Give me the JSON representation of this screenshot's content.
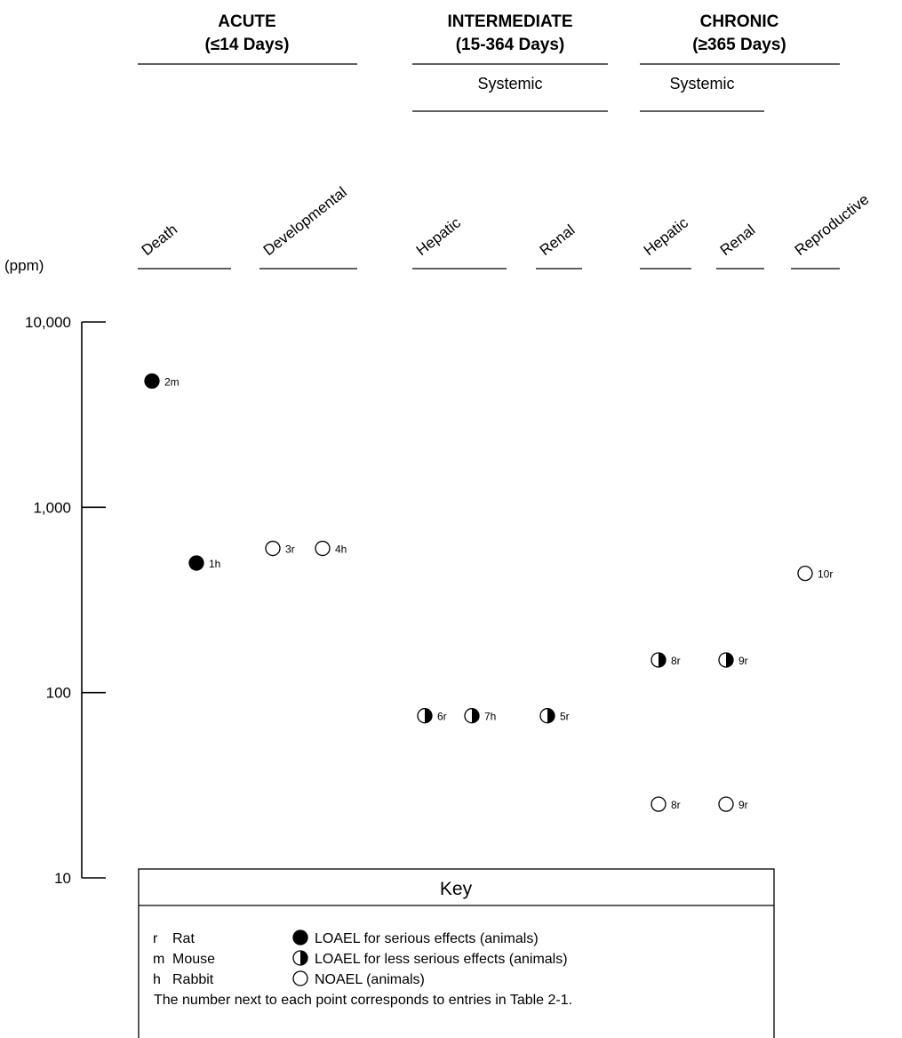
{
  "chart_data": {
    "type": "scatter",
    "y_unit": "(ppm)",
    "y_scale": "log",
    "ylim": [
      10,
      10000
    ],
    "y_ticks": [
      {
        "value": 10000,
        "label": "10,000"
      },
      {
        "value": 1000,
        "label": "1,000"
      },
      {
        "value": 100,
        "label": "100"
      },
      {
        "value": 10,
        "label": "10"
      }
    ],
    "durations": [
      {
        "id": "acute",
        "title": "ACUTE",
        "subtitle": "(≤14 Days)"
      },
      {
        "id": "intermediate",
        "title": "INTERMEDIATE",
        "subtitle": "(15-364 Days)",
        "group": "Systemic"
      },
      {
        "id": "chronic",
        "title": "CHRONIC",
        "subtitle": "(≥365 Days)",
        "group": "Systemic"
      }
    ],
    "columns": [
      {
        "id": "acute-death",
        "duration": "acute",
        "label": "Death"
      },
      {
        "id": "acute-developmental",
        "duration": "acute",
        "label": "Developmental"
      },
      {
        "id": "intermediate-hepatic",
        "duration": "intermediate",
        "label": "Hepatic"
      },
      {
        "id": "intermediate-renal",
        "duration": "intermediate",
        "label": "Renal"
      },
      {
        "id": "chronic-hepatic",
        "duration": "chronic",
        "label": "Hepatic"
      },
      {
        "id": "chronic-renal",
        "duration": "chronic",
        "label": "Renal"
      },
      {
        "id": "chronic-reproductive",
        "duration": "chronic",
        "label": "Reproductive"
      }
    ],
    "points": [
      {
        "column": "acute-death",
        "value": 4800,
        "label": "2m",
        "effect": "loael-serious"
      },
      {
        "column": "acute-death",
        "value": 500,
        "label": "1h",
        "effect": "loael-serious"
      },
      {
        "column": "acute-developmental",
        "value": 600,
        "label": "3r",
        "effect": "noael"
      },
      {
        "column": "acute-developmental",
        "value": 600,
        "label": "4h",
        "effect": "noael"
      },
      {
        "column": "intermediate-hepatic",
        "value": 75,
        "label": "6r",
        "effect": "loael-less-serious"
      },
      {
        "column": "intermediate-hepatic",
        "value": 75,
        "label": "7h",
        "effect": "loael-less-serious"
      },
      {
        "column": "intermediate-renal",
        "value": 75,
        "label": "5r",
        "effect": "loael-less-serious"
      },
      {
        "column": "chronic-hepatic",
        "value": 150,
        "label": "8r",
        "effect": "loael-less-serious"
      },
      {
        "column": "chronic-hepatic",
        "value": 25,
        "label": "8r",
        "effect": "noael"
      },
      {
        "column": "chronic-renal",
        "value": 150,
        "label": "9r",
        "effect": "loael-less-serious"
      },
      {
        "column": "chronic-renal",
        "value": 25,
        "label": "9r",
        "effect": "noael"
      },
      {
        "column": "chronic-reproductive",
        "value": 440,
        "label": "10r",
        "effect": "noael"
      }
    ],
    "key": {
      "title": "Key",
      "species": [
        {
          "code": "r",
          "name": "Rat"
        },
        {
          "code": "m",
          "name": "Mouse"
        },
        {
          "code": "h",
          "name": "Rabbit"
        }
      ],
      "symbols": [
        {
          "effect": "loael-serious",
          "label": "LOAEL for serious effects (animals)"
        },
        {
          "effect": "loael-less-serious",
          "label": "LOAEL for less serious effects (animals)"
        },
        {
          "effect": "noael",
          "label": "NOAEL (animals)"
        }
      ],
      "note": "The number next to each point corresponds to entries in Table 2-1."
    }
  }
}
